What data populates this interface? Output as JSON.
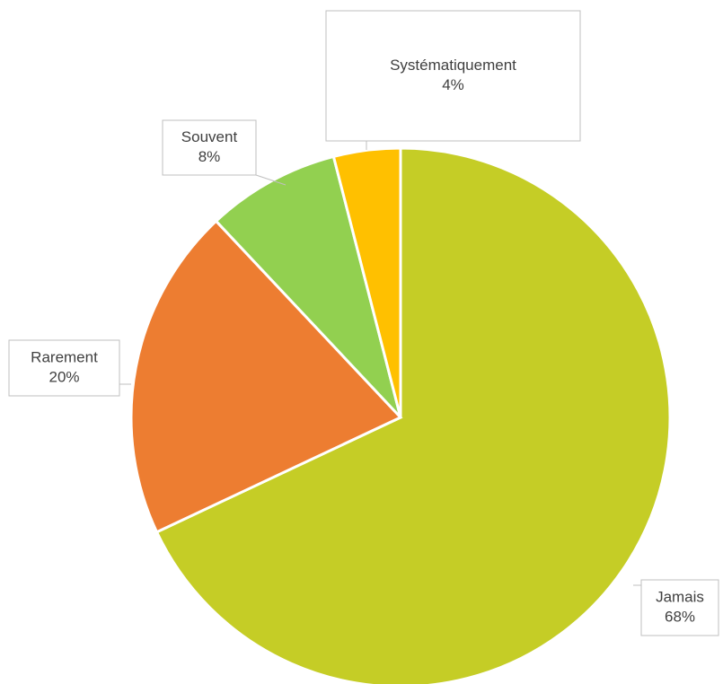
{
  "chart_data": {
    "type": "pie",
    "categories": [
      "Jamais",
      "Rarement",
      "Souvent",
      "Systématiquement"
    ],
    "values": [
      68,
      20,
      8,
      4
    ],
    "value_labels": [
      "68%",
      "20%",
      "8%",
      "4%"
    ],
    "colors": [
      "#c5cd26",
      "#ed7d31",
      "#92d050",
      "#ffc000"
    ]
  }
}
